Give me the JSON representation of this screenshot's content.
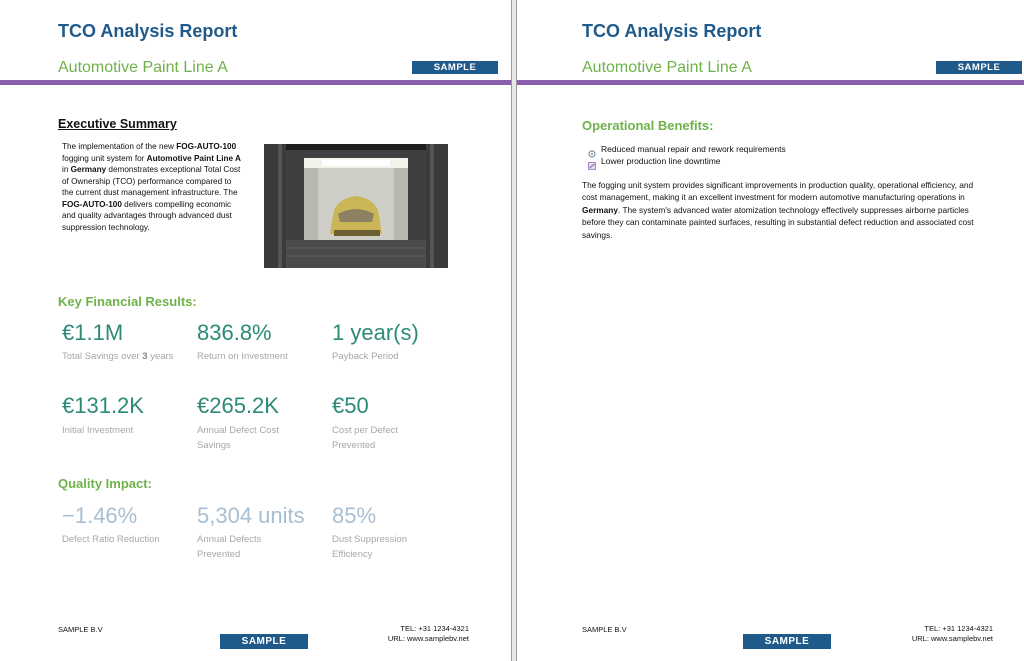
{
  "left_page": {
    "title": "TCO Analysis Report",
    "subtitle": "Automotive Paint Line A",
    "badge": "SAMPLE",
    "executive_summary": {
      "heading": "Executive Summary",
      "t1": "The implementation of the new ",
      "b1": "FOG-AUTO-100",
      "t2": " fogging unit system for ",
      "b2": "Automotive Paint Line A",
      "t3": " in ",
      "b3": "Germany",
      "t4": " demonstrates exceptional Total Cost of Ownership (TCO) performance compared to the current dust management infrastructure. The ",
      "b4": "FOG-AUTO-100",
      "t5": " delivers compelling economic and quality advantages through advanced dust suppression technology."
    },
    "key_financial": {
      "heading": "Key Financial Results:",
      "m1_value": "€1.1M",
      "m1_label_a": "Total Savings over ",
      "m1_label_b": "3",
      "m1_label_c": " years",
      "m2_value": "836.8%",
      "m2_label": "Return on Investment",
      "m3_value": "1 year(s)",
      "m3_label": "Payback Period",
      "m4_value": "€131.2K",
      "m4_label": "Initial Investment",
      "m5_value": "€265.2K",
      "m5_label": "Annual Defect Cost Savings",
      "m6_value": "€50",
      "m6_label": "Cost per Defect Prevented"
    },
    "quality_impact": {
      "heading": "Quality Impact:",
      "q1_value": "−1.46%",
      "q1_label": "Defect Ratio Reduction",
      "q2_value": "5,304 units",
      "q2_label": "Annual Defects Prevented",
      "q3_value": "85%",
      "q3_label": "Dust Suppression Efficiency"
    },
    "footer": {
      "company": "SAMPLE B.V",
      "tel": "TEL: +31 1234-4321",
      "url": "URL: www.samplebv.net",
      "badge": "SAMPLE"
    }
  },
  "right_page": {
    "title": "TCO Analysis Report",
    "subtitle": "Automotive Paint Line A",
    "badge": "SAMPLE",
    "operational": {
      "heading": "Operational Benefits:",
      "item1": "Reduced manual repair and rework requirements",
      "item2": "Lower production line downtime",
      "p1": "The fogging unit system provides significant improvements in production quality, operational efficiency, and cost management, making it an excellent investment for modern automotive manufacturing operations in ",
      "p_bold": "Germany",
      "p2": ". The system's advanced water atomization technology effectively suppresses airborne particles before they can contaminate painted surfaces, resulting in substantial defect reduction and associated cost savings."
    },
    "footer": {
      "company": "SAMPLE B.V",
      "tel": "TEL: +31 1234-4321",
      "url": "URL: www.samplebv.net",
      "badge": "SAMPLE"
    }
  },
  "colors": {
    "title_blue": "#1f5a8a",
    "accent_green": "#6fb24a",
    "metric_teal": "#2c8a76",
    "rule_purple": "#8a5fae",
    "pale_blue": "#a8bed2"
  }
}
